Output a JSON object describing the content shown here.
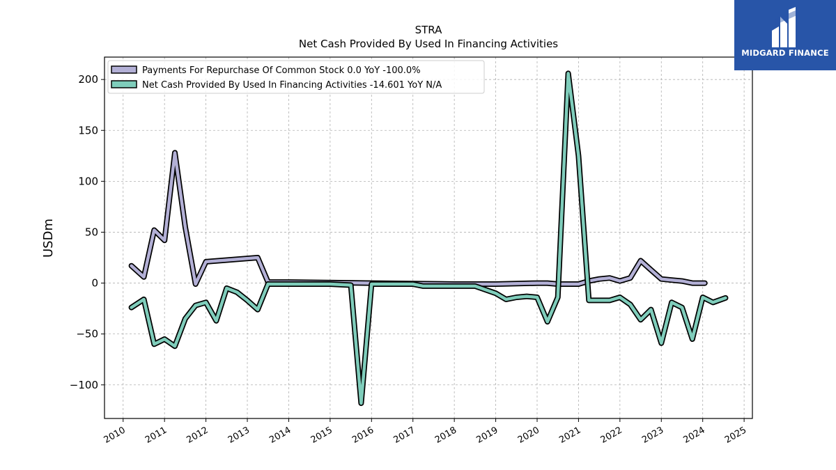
{
  "brand": {
    "name": "MIDGARD FINANCE",
    "color": "#2855a8"
  },
  "chart_data": {
    "type": "line",
    "title": "STRA",
    "subtitle": "Net Cash Provided By Used In Financing Activities",
    "xlabel": "",
    "ylabel": "USDm",
    "xlim": [
      2009.55,
      2025.2
    ],
    "ylim": [
      -133,
      222
    ],
    "yticks": [
      -100,
      -50,
      0,
      50,
      100,
      150,
      200
    ],
    "yticklabels": [
      "−100",
      "−50",
      "0",
      "50",
      "100",
      "150",
      "200"
    ],
    "xticks": [
      2010,
      2011,
      2012,
      2013,
      2014,
      2015,
      2016,
      2017,
      2018,
      2019,
      2020,
      2021,
      2022,
      2023,
      2024,
      2025
    ],
    "xticklabels": [
      "2010",
      "2011",
      "2012",
      "2013",
      "2014",
      "2015",
      "2016",
      "2017",
      "2018",
      "2019",
      "2020",
      "2021",
      "2022",
      "2023",
      "2024",
      "2025"
    ],
    "grid": true,
    "legend_position": "top-left",
    "series": [
      {
        "name": "Payments For Repurchase Of Common Stock",
        "legend": "Payments For Repurchase Of Common Stock  0.0 YoY -100.0%",
        "color": "#b3b0d6",
        "x": [
          2010.2,
          2010.5,
          2010.75,
          2011.0,
          2011.25,
          2011.5,
          2011.75,
          2012.0,
          2013.25,
          2013.5,
          2014.0,
          2016.0,
          2018.0,
          2019.0,
          2020.0,
          2020.25,
          2020.5,
          2020.75,
          2021.0,
          2021.25,
          2021.5,
          2021.75,
          2022.0,
          2022.25,
          2022.5,
          2022.75,
          2023.0,
          2023.25,
          2023.5,
          2023.75,
          2024.05
        ],
        "y": [
          17,
          6,
          52,
          42,
          128,
          55,
          -1,
          21,
          25,
          1,
          1,
          0,
          -1,
          -1,
          0,
          0,
          -1,
          -1,
          -1,
          2,
          4,
          5,
          2,
          5,
          22,
          13,
          4,
          3,
          2,
          0,
          0
        ]
      },
      {
        "name": "Net Cash Provided By Used In Financing Activities",
        "legend": "Net Cash Provided By Used In Financing Activities  -14.601 YoY N/A",
        "color": "#7fcdbb",
        "x": [
          2010.2,
          2010.5,
          2010.75,
          2011.0,
          2011.25,
          2011.5,
          2011.75,
          2012.0,
          2012.25,
          2012.5,
          2012.75,
          2013.0,
          2013.25,
          2013.5,
          2014.0,
          2014.5,
          2015.0,
          2015.5,
          2015.75,
          2016.0,
          2016.5,
          2017.0,
          2017.25,
          2017.5,
          2018.0,
          2018.5,
          2019.0,
          2019.25,
          2019.5,
          2019.75,
          2020.0,
          2020.25,
          2020.5,
          2020.75,
          2021.0,
          2021.25,
          2021.5,
          2021.75,
          2022.0,
          2022.25,
          2022.5,
          2022.75,
          2023.0,
          2023.25,
          2023.5,
          2023.75,
          2024.0,
          2024.25,
          2024.55
        ],
        "y": [
          -24,
          -16,
          -60,
          -55,
          -62,
          -35,
          -22,
          -19,
          -37,
          -5,
          -9,
          -17,
          -26,
          -1,
          -1,
          -1,
          -1,
          -2,
          -118,
          -1,
          -1,
          -1,
          -3,
          -3,
          -3,
          -3,
          -10,
          -16,
          -14,
          -13,
          -14,
          -38,
          -14,
          206,
          125,
          -17,
          -17,
          -17,
          -14,
          -21,
          -36,
          -26,
          -59,
          -19,
          -24,
          -55,
          -14,
          -19,
          -14.6
        ]
      }
    ]
  }
}
